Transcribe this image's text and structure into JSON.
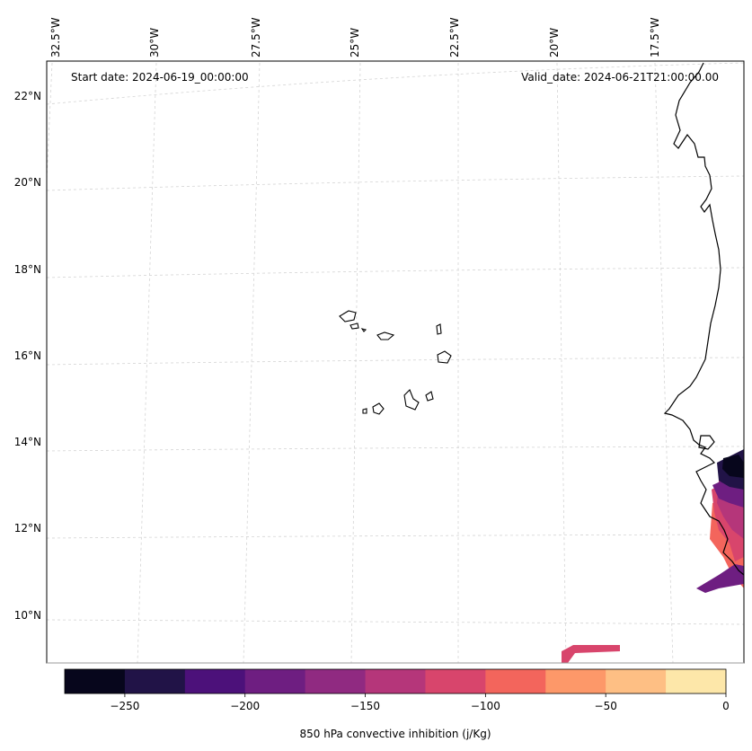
{
  "map": {
    "start_label": "Start date: 2024-06-19_00:00:00",
    "valid_label": "Valid_date: 2024-06-21T21:00:00.00",
    "lon_labels": [
      {
        "text": "32.5°W",
        "lon": -32.5
      },
      {
        "text": "30°W",
        "lon": -30
      },
      {
        "text": "27.5°W",
        "lon": -27.5
      },
      {
        "text": "25°W",
        "lon": -25
      },
      {
        "text": "22.5°W",
        "lon": -22.5
      },
      {
        "text": "20°W",
        "lon": -20
      },
      {
        "text": "17.5°W",
        "lon": -17.5
      }
    ],
    "lat_labels": [
      {
        "text": "22°N",
        "lat": 22
      },
      {
        "text": "20°N",
        "lat": 20
      },
      {
        "text": "18°N",
        "lat": 18
      },
      {
        "text": "16°N",
        "lat": 16
      },
      {
        "text": "14°N",
        "lat": 14
      },
      {
        "text": "12°N",
        "lat": 12
      },
      {
        "text": "10°N",
        "lat": 10
      }
    ]
  },
  "colorbar": {
    "label": "850 hPa convective inhibition (j/Kg)",
    "range": [
      -275,
      0
    ],
    "ticks": [
      {
        "value": -250,
        "text": "−250"
      },
      {
        "value": -200,
        "text": "−200"
      },
      {
        "value": -150,
        "text": "−150"
      },
      {
        "value": -100,
        "text": "−100"
      },
      {
        "value": -50,
        "text": "−50"
      },
      {
        "value": 0,
        "text": "0"
      }
    ],
    "bins": [
      {
        "from": -275,
        "to": -250,
        "color": "#07061c"
      },
      {
        "from": -250,
        "to": -225,
        "color": "#211347"
      },
      {
        "from": -225,
        "to": -200,
        "color": "#4c117a"
      },
      {
        "from": -200,
        "to": -175,
        "color": "#6e1e81"
      },
      {
        "from": -175,
        "to": -150,
        "color": "#902a81"
      },
      {
        "from": -150,
        "to": -125,
        "color": "#b5367a"
      },
      {
        "from": -125,
        "to": -100,
        "color": "#d8456c"
      },
      {
        "from": -100,
        "to": -75,
        "color": "#f3655c"
      },
      {
        "from": -75,
        "to": -50,
        "color": "#fd9869"
      },
      {
        "from": -50,
        "to": -25,
        "color": "#febf84"
      },
      {
        "from": -25,
        "to": 0,
        "color": "#fde7a9"
      }
    ]
  }
}
